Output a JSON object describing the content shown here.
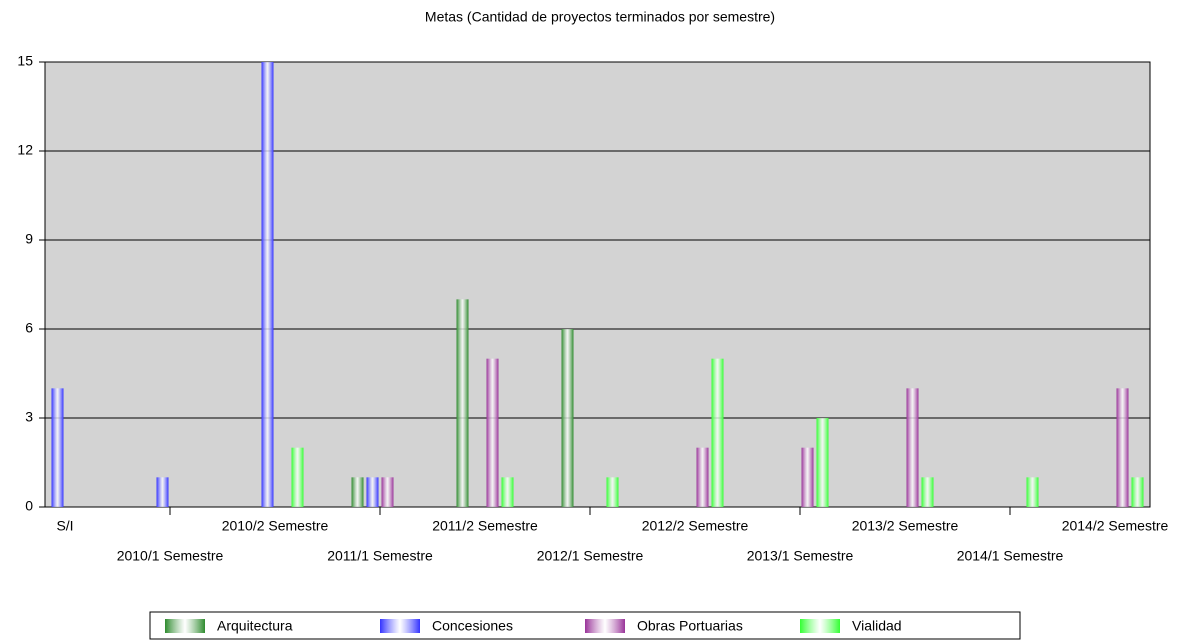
{
  "chart_data": {
    "type": "bar",
    "title": "Metas (Cantidad de proyectos terminados por semestre)",
    "categories": [
      "S/I",
      "2010/1 Semestre",
      "2010/2 Semestre",
      "2011/1 Semestre",
      "2011/2 Semestre",
      "2012/1 Semestre",
      "2012/2 Semestre",
      "2013/1 Semestre",
      "2013/2 Semestre",
      "2014/1 Semestre",
      "2014/2 Semestre"
    ],
    "series": [
      {
        "name": "Arquitectura",
        "color": "#2e8b2e",
        "values": [
          0,
          0,
          0,
          1,
          7,
          6,
          0,
          0,
          0,
          0,
          0
        ]
      },
      {
        "name": "Concesiones",
        "color": "#3333ff",
        "values": [
          4,
          1,
          15,
          1,
          0,
          0,
          0,
          0,
          0,
          0,
          0
        ]
      },
      {
        "name": "Obras Portuarias",
        "color": "#993399",
        "values": [
          0,
          0,
          0,
          1,
          5,
          0,
          2,
          2,
          4,
          0,
          4
        ]
      },
      {
        "name": "Vialidad",
        "color": "#33ff33",
        "values": [
          0,
          0,
          2,
          0,
          1,
          1,
          5,
          3,
          1,
          1,
          1
        ]
      }
    ],
    "ylim": [
      0,
      15
    ],
    "yticks": [
      0,
      3,
      6,
      9,
      12,
      15
    ],
    "grid": true,
    "legend": "bottom"
  }
}
